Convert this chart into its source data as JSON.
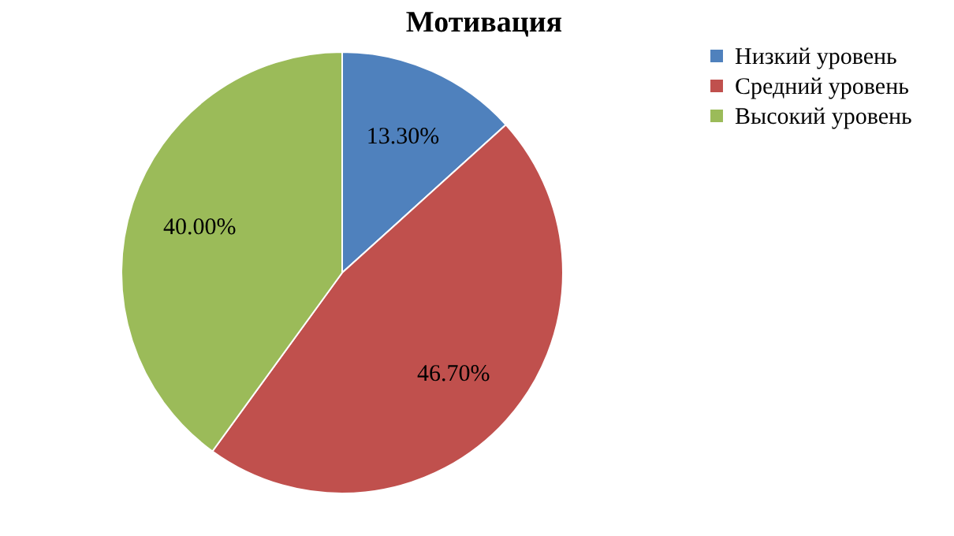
{
  "chart_data": {
    "type": "pie",
    "title": "Мотивация",
    "categories": [
      "Низкий уровень",
      "Средний уровень",
      "Высокий уровень"
    ],
    "values": [
      13.3,
      46.7,
      40.0
    ],
    "value_labels": [
      "13.30%",
      "46.70%",
      "40.00%"
    ],
    "colors": [
      "#4f81bd",
      "#c0504d",
      "#9bbb59"
    ],
    "legend": "right"
  }
}
